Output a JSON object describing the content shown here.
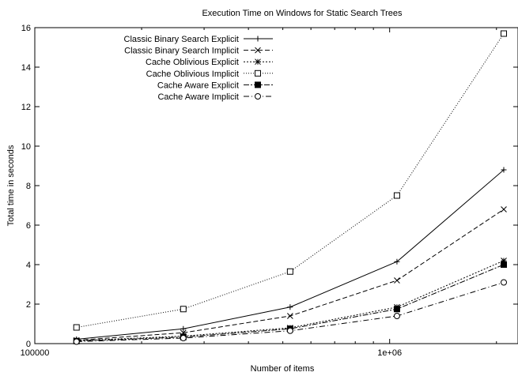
{
  "chart_data": {
    "type": "line",
    "title": "Execution Time on Windows for Static Search Trees",
    "xlabel": "Number of items",
    "ylabel": "Total time in seconds",
    "xscale": "log",
    "xlim": [
      100000,
      2300000
    ],
    "ylim": [
      0,
      16
    ],
    "x_ticks": [
      100000,
      1000000
    ],
    "x_tick_labels": [
      "100000",
      "1e+06"
    ],
    "y_ticks": [
      0,
      2,
      4,
      6,
      8,
      10,
      12,
      14,
      16
    ],
    "y_tick_labels": [
      "0",
      "2",
      "4",
      "6",
      "8",
      "10",
      "12",
      "14",
      "16"
    ],
    "grid": false,
    "legend_position": "top-left",
    "x": [
      131072,
      262144,
      524288,
      1048576,
      2097152
    ],
    "series": [
      {
        "name": "Classic Binary Search Explicit",
        "marker": "plus",
        "dash": "",
        "values": [
          0.22,
          0.75,
          1.85,
          4.15,
          8.8
        ]
      },
      {
        "name": "Classic Binary Search Implicit",
        "marker": "cross",
        "dash": "6,3",
        "values": [
          0.17,
          0.55,
          1.4,
          3.2,
          6.8
        ]
      },
      {
        "name": "Cache Oblivious Explicit",
        "marker": "star",
        "dash": "2,2",
        "values": [
          0.15,
          0.38,
          0.8,
          1.85,
          4.2
        ]
      },
      {
        "name": "Cache Oblivious Implicit",
        "marker": "square-open",
        "dash": "1,2",
        "values": [
          0.82,
          1.75,
          3.65,
          7.5,
          15.7
        ]
      },
      {
        "name": "Cache Aware Explicit",
        "marker": "square-filled",
        "dash": "7,2,2,2",
        "values": [
          0.13,
          0.33,
          0.75,
          1.75,
          4.0
        ]
      },
      {
        "name": "Cache Aware Implicit",
        "marker": "circle-open",
        "dash": "7,3,1,3",
        "values": [
          0.1,
          0.28,
          0.65,
          1.4,
          3.1
        ]
      }
    ]
  }
}
